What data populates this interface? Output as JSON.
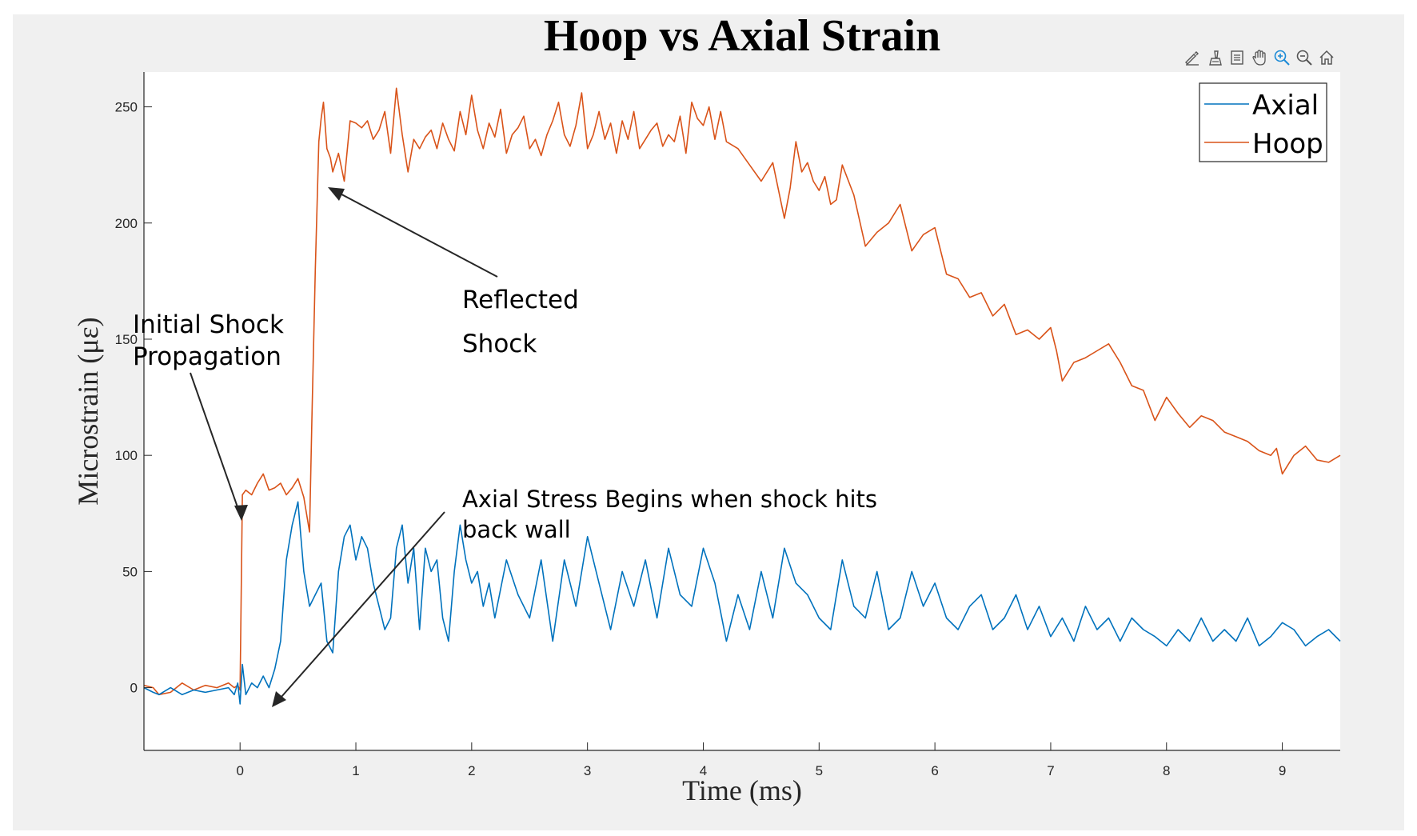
{
  "window": {
    "background": "#f0f0f0"
  },
  "toolbar": {
    "icons": [
      "brush-edit-icon",
      "data-tips-icon",
      "restore-view-icon",
      "pan-icon",
      "zoom-in-icon",
      "zoom-out-icon",
      "home-icon"
    ]
  },
  "chart_data": {
    "type": "line",
    "title": "Hoop vs Axial Strain",
    "xlabel": "Time (ms)",
    "ylabel": "Microstrain (με)",
    "xlim": [
      -0.83,
      9.5
    ],
    "ylim": [
      -27,
      265
    ],
    "xticks": [
      "0",
      "1",
      "2",
      "3",
      "4",
      "5",
      "6",
      "7",
      "8",
      "9"
    ],
    "yticks": [
      "0",
      "50",
      "100",
      "150",
      "200",
      "250"
    ],
    "grid": false,
    "legend": {
      "position": "top-right",
      "entries": [
        "Axial",
        "Hoop"
      ]
    },
    "colors": {
      "Axial": "#0072bd",
      "Hoop": "#d95319"
    },
    "series": [
      {
        "name": "Hoop",
        "x": [
          -0.83,
          -0.75,
          -0.7,
          -0.6,
          -0.5,
          -0.4,
          -0.3,
          -0.2,
          -0.1,
          -0.05,
          -0.02,
          0.0,
          0.02,
          0.05,
          0.1,
          0.15,
          0.2,
          0.25,
          0.3,
          0.35,
          0.4,
          0.45,
          0.5,
          0.55,
          0.6,
          0.62,
          0.65,
          0.68,
          0.7,
          0.72,
          0.75,
          0.78,
          0.8,
          0.85,
          0.9,
          0.95,
          1.0,
          1.05,
          1.1,
          1.15,
          1.2,
          1.25,
          1.3,
          1.35,
          1.4,
          1.45,
          1.5,
          1.55,
          1.6,
          1.65,
          1.7,
          1.75,
          1.8,
          1.85,
          1.9,
          1.95,
          2.0,
          2.05,
          2.1,
          2.15,
          2.2,
          2.25,
          2.3,
          2.35,
          2.4,
          2.45,
          2.5,
          2.55,
          2.6,
          2.65,
          2.7,
          2.75,
          2.8,
          2.85,
          2.9,
          2.95,
          3.0,
          3.05,
          3.1,
          3.15,
          3.2,
          3.25,
          3.3,
          3.35,
          3.4,
          3.45,
          3.5,
          3.55,
          3.6,
          3.65,
          3.7,
          3.75,
          3.8,
          3.85,
          3.9,
          3.95,
          4.0,
          4.05,
          4.1,
          4.15,
          4.2,
          4.3,
          4.4,
          4.5,
          4.6,
          4.7,
          4.75,
          4.8,
          4.85,
          4.9,
          4.95,
          5.0,
          5.05,
          5.1,
          5.15,
          5.2,
          5.3,
          5.4,
          5.5,
          5.6,
          5.7,
          5.8,
          5.9,
          6.0,
          6.1,
          6.2,
          6.3,
          6.4,
          6.5,
          6.6,
          6.7,
          6.8,
          6.9,
          7.0,
          7.05,
          7.1,
          7.2,
          7.3,
          7.4,
          7.5,
          7.6,
          7.7,
          7.8,
          7.9,
          8.0,
          8.1,
          8.2,
          8.3,
          8.4,
          8.5,
          8.6,
          8.7,
          8.8,
          8.9,
          8.95,
          9.0,
          9.1,
          9.2,
          9.3,
          9.4,
          9.5
        ],
        "y": [
          1,
          0,
          -3,
          -2,
          2,
          -1,
          1,
          0,
          2,
          0,
          1,
          -1,
          83,
          85,
          83,
          88,
          92,
          85,
          86,
          88,
          83,
          86,
          90,
          82,
          67,
          115,
          180,
          235,
          245,
          252,
          232,
          228,
          222,
          230,
          218,
          244,
          243,
          241,
          244,
          236,
          240,
          248,
          230,
          258,
          238,
          222,
          236,
          232,
          237,
          240,
          232,
          243,
          236,
          231,
          248,
          238,
          255,
          240,
          232,
          243,
          237,
          249,
          230,
          238,
          241,
          246,
          232,
          236,
          229,
          238,
          244,
          252,
          238,
          233,
          242,
          256,
          232,
          238,
          248,
          236,
          243,
          230,
          244,
          236,
          248,
          232,
          236,
          240,
          243,
          233,
          238,
          235,
          246,
          230,
          252,
          245,
          242,
          250,
          236,
          248,
          235,
          232,
          225,
          218,
          226,
          202,
          215,
          235,
          222,
          226,
          218,
          214,
          220,
          208,
          210,
          225,
          212,
          190,
          196,
          200,
          208,
          188,
          195,
          198,
          178,
          176,
          168,
          170,
          160,
          165,
          152,
          154,
          150,
          155,
          145,
          132,
          140,
          142,
          145,
          148,
          140,
          130,
          128,
          115,
          125,
          118,
          112,
          117,
          115,
          110,
          108,
          106,
          102,
          100,
          103,
          92,
          100,
          104,
          98,
          97,
          100
        ]
      },
      {
        "name": "Axial",
        "x": [
          -0.83,
          -0.75,
          -0.7,
          -0.6,
          -0.5,
          -0.4,
          -0.3,
          -0.2,
          -0.1,
          -0.05,
          -0.02,
          0.0,
          0.02,
          0.05,
          0.1,
          0.15,
          0.2,
          0.25,
          0.3,
          0.35,
          0.4,
          0.45,
          0.5,
          0.55,
          0.6,
          0.65,
          0.7,
          0.75,
          0.8,
          0.85,
          0.9,
          0.95,
          1.0,
          1.05,
          1.1,
          1.15,
          1.2,
          1.25,
          1.3,
          1.35,
          1.4,
          1.45,
          1.5,
          1.55,
          1.6,
          1.65,
          1.7,
          1.75,
          1.8,
          1.85,
          1.9,
          1.95,
          2.0,
          2.05,
          2.1,
          2.15,
          2.2,
          2.3,
          2.4,
          2.5,
          2.6,
          2.7,
          2.8,
          2.9,
          3.0,
          3.1,
          3.2,
          3.3,
          3.4,
          3.5,
          3.6,
          3.7,
          3.8,
          3.9,
          4.0,
          4.1,
          4.2,
          4.3,
          4.4,
          4.5,
          4.6,
          4.7,
          4.8,
          4.9,
          5.0,
          5.1,
          5.2,
          5.3,
          5.4,
          5.5,
          5.6,
          5.7,
          5.8,
          5.9,
          6.0,
          6.1,
          6.2,
          6.3,
          6.4,
          6.5,
          6.6,
          6.7,
          6.8,
          6.9,
          7.0,
          7.1,
          7.2,
          7.3,
          7.4,
          7.5,
          7.6,
          7.7,
          7.8,
          7.9,
          8.0,
          8.1,
          8.2,
          8.3,
          8.4,
          8.5,
          8.6,
          8.7,
          8.8,
          8.9,
          9.0,
          9.1,
          9.2,
          9.3,
          9.4,
          9.5
        ],
        "y": [
          0,
          -2,
          -3,
          0,
          -3,
          -1,
          -2,
          -1,
          0,
          -3,
          2,
          -7,
          10,
          -3,
          2,
          0,
          5,
          0,
          8,
          20,
          55,
          70,
          80,
          50,
          35,
          40,
          45,
          20,
          15,
          50,
          65,
          70,
          55,
          65,
          60,
          45,
          35,
          25,
          30,
          60,
          70,
          45,
          60,
          25,
          60,
          50,
          55,
          30,
          20,
          50,
          70,
          55,
          45,
          50,
          35,
          45,
          30,
          55,
          40,
          30,
          55,
          20,
          55,
          35,
          65,
          45,
          25,
          50,
          35,
          55,
          30,
          60,
          40,
          35,
          60,
          45,
          20,
          40,
          25,
          50,
          30,
          60,
          45,
          40,
          30,
          25,
          55,
          35,
          30,
          50,
          25,
          30,
          50,
          35,
          45,
          30,
          25,
          35,
          40,
          25,
          30,
          40,
          25,
          35,
          22,
          30,
          20,
          35,
          25,
          30,
          20,
          30,
          25,
          22,
          18,
          25,
          20,
          30,
          20,
          25,
          20,
          30,
          18,
          22,
          28,
          25,
          18,
          22,
          25,
          20
        ]
      }
    ],
    "annotations": [
      {
        "lines": [
          "Initial Shock",
          "Propagation"
        ]
      },
      {
        "lines": [
          "Reflected",
          "Shock"
        ]
      },
      {
        "lines": [
          "Axial Stress Begins when shock hits",
          "back wall"
        ]
      }
    ]
  }
}
